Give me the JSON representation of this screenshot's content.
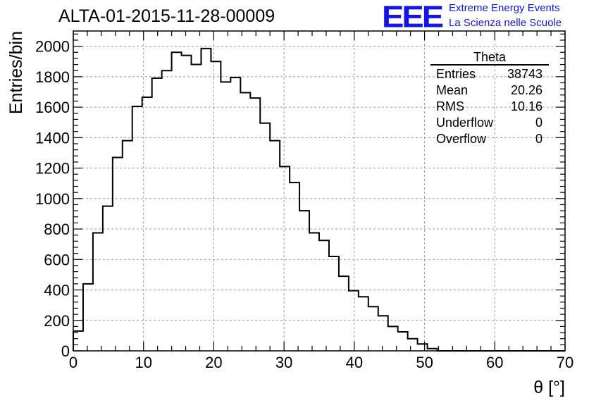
{
  "header": {
    "run_title": "ALTA-01-2015-11-28-00009",
    "logo_text": "EEE",
    "org_line1": "Extreme Energy Events",
    "org_line2": "La Scienza nelle Scuole"
  },
  "stats": {
    "name": "Theta",
    "rows": [
      {
        "label": "Entries",
        "value": "38743"
      },
      {
        "label": "Mean",
        "value": "20.26"
      },
      {
        "label": "RMS",
        "value": "10.16"
      },
      {
        "label": "Underflow",
        "value": "0"
      },
      {
        "label": "Overflow",
        "value": "0"
      }
    ]
  },
  "colors": {
    "logo": "#1414e6",
    "line": "#000000",
    "grid": "#9a9a9a"
  },
  "chart_data": {
    "type": "histogram",
    "title": "ALTA-01-2015-11-28-00009",
    "xlabel": "θ [°]",
    "ylabel": "Entries/bin",
    "xlim": [
      0,
      70
    ],
    "ylim": [
      0,
      2100
    ],
    "grid": true,
    "bin_width": 1.4,
    "x_ticks": [
      0,
      10,
      20,
      30,
      40,
      50,
      60,
      70
    ],
    "y_ticks": [
      0,
      200,
      400,
      600,
      800,
      1000,
      1200,
      1400,
      1600,
      1800,
      2000
    ],
    "bin_edges_start": 0,
    "values": [
      130,
      440,
      775,
      950,
      1270,
      1380,
      1605,
      1665,
      1790,
      1840,
      1960,
      1940,
      1880,
      1985,
      1900,
      1765,
      1795,
      1695,
      1660,
      1495,
      1380,
      1210,
      1105,
      920,
      775,
      725,
      620,
      490,
      395,
      355,
      290,
      230,
      160,
      125,
      80,
      45,
      15,
      0,
      0,
      0,
      0,
      0,
      0,
      0,
      0,
      0,
      0,
      0,
      0,
      0
    ]
  }
}
